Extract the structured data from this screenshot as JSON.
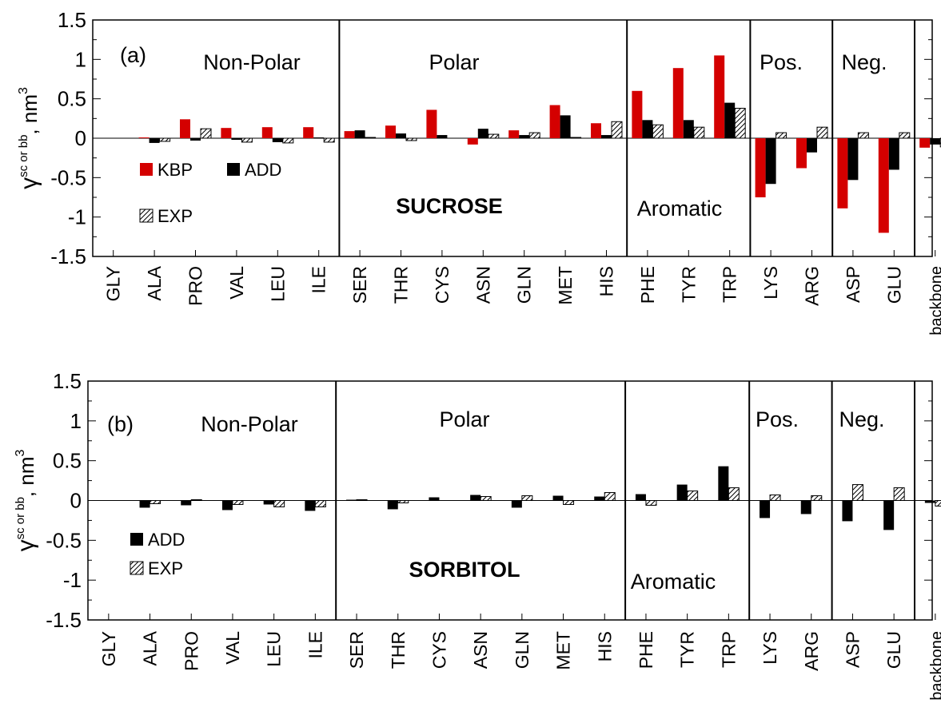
{
  "colors": {
    "kbp": "#d40000",
    "add": "#000000",
    "exp_stroke": "#000000",
    "exp_fill": "#ffffff"
  },
  "chart_data": [
    {
      "type": "bar",
      "panel": "(a)",
      "solvent_label": "SUCROSE",
      "ylabel_main": "γ",
      "ylabel_sup": "sc or bb",
      "ylabel_unit": ", nm",
      "ylabel_unit_sup": "3",
      "ylim": [
        -1.5,
        1.5
      ],
      "yticks": [
        "-1.5",
        "-1",
        "-0.5",
        "0",
        "0.5",
        "1",
        "1.5"
      ],
      "categories": [
        "GLY",
        "ALA",
        "PRO",
        "VAL",
        "LEU",
        "ILE",
        "SER",
        "THR",
        "CYS",
        "ASN",
        "GLN",
        "MET",
        "HIS",
        "PHE",
        "TYR",
        "TRP",
        "LYS",
        "ARG",
        "ASP",
        "GLU",
        "backbone"
      ],
      "groups": [
        {
          "label": "Non-Polar",
          "start": 0,
          "end": 5
        },
        {
          "label": "Polar",
          "start": 6,
          "end": 12
        },
        {
          "label": "Aromatic",
          "start": 13,
          "end": 15
        },
        {
          "label": "Pos.",
          "start": 16,
          "end": 17
        },
        {
          "label": "Neg.",
          "start": 18,
          "end": 19
        },
        {
          "label": "",
          "start": 20,
          "end": 20
        }
      ],
      "series": [
        {
          "name": "KBP",
          "values": [
            0,
            0.01,
            0.24,
            0.13,
            0.14,
            0.14,
            0.09,
            0.16,
            0.36,
            -0.08,
            0.1,
            0.42,
            0.19,
            0.6,
            0.89,
            1.05,
            -0.75,
            -0.38,
            -0.89,
            -1.2,
            -0.12
          ]
        },
        {
          "name": "ADD",
          "values": [
            0,
            -0.06,
            -0.03,
            -0.02,
            -0.05,
            0.01,
            0.1,
            0.06,
            0.04,
            0.12,
            0.04,
            0.29,
            0.04,
            0.23,
            0.23,
            0.45,
            -0.58,
            -0.18,
            -0.53,
            -0.4,
            -0.08
          ]
        },
        {
          "name": "EXP",
          "values": [
            0,
            -0.04,
            0.12,
            -0.05,
            -0.06,
            -0.05,
            0.01,
            -0.03,
            0,
            0.05,
            0.07,
            0.01,
            0.21,
            0.17,
            0.14,
            0.38,
            0.07,
            0.14,
            0.07,
            0.07,
            -0.11
          ]
        }
      ]
    },
    {
      "type": "bar",
      "panel": "(b)",
      "solvent_label": "SORBITOL",
      "ylabel_main": "γ",
      "ylabel_sup": "sc or bb",
      "ylabel_unit": ", nm",
      "ylabel_unit_sup": "3",
      "ylim": [
        -1.5,
        1.5
      ],
      "yticks": [
        "-1.5",
        "-1",
        "-0.5",
        "0",
        "0.5",
        "1",
        "1.5"
      ],
      "categories": [
        "GLY",
        "ALA",
        "PRO",
        "VAL",
        "LEU",
        "ILE",
        "SER",
        "THR",
        "CYS",
        "ASN",
        "GLN",
        "MET",
        "HIS",
        "PHE",
        "TYR",
        "TRP",
        "LYS",
        "ARG",
        "ASP",
        "GLU",
        "backbone"
      ],
      "groups": [
        {
          "label": "Non-Polar",
          "start": 0,
          "end": 5
        },
        {
          "label": "Polar",
          "start": 6,
          "end": 12
        },
        {
          "label": "Aromatic",
          "start": 13,
          "end": 15
        },
        {
          "label": "Pos.",
          "start": 16,
          "end": 17
        },
        {
          "label": "Neg.",
          "start": 18,
          "end": 19
        },
        {
          "label": "",
          "start": 20,
          "end": 20
        }
      ],
      "series": [
        {
          "name": "ADD",
          "values": [
            0,
            -0.09,
            -0.06,
            -0.12,
            -0.05,
            -0.13,
            0.01,
            -0.11,
            0.04,
            0.07,
            -0.09,
            0.06,
            0.05,
            0.08,
            0.2,
            0.43,
            -0.22,
            -0.17,
            -0.26,
            -0.37,
            -0.03
          ]
        },
        {
          "name": "EXP",
          "values": [
            0,
            -0.04,
            0.01,
            -0.05,
            -0.08,
            -0.08,
            0.01,
            -0.03,
            0,
            0.05,
            0.06,
            -0.05,
            0.1,
            -0.06,
            0.12,
            0.16,
            0.07,
            0.06,
            0.2,
            0.16,
            -0.07
          ]
        }
      ]
    }
  ]
}
